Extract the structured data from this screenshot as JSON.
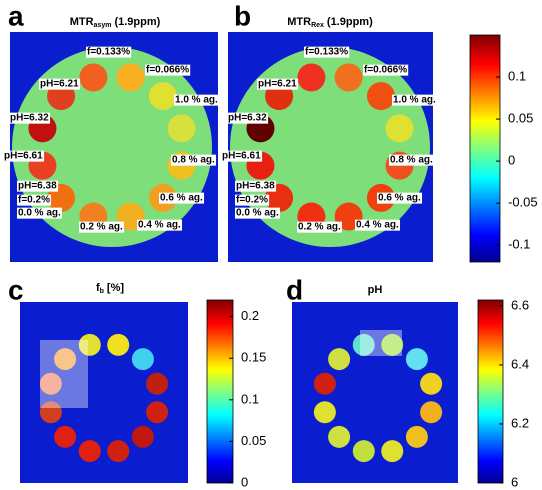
{
  "panels": [
    {
      "letter": "a",
      "title": {
        "main": "MTR",
        "sub": "asym",
        "rest": "(1.9ppm)"
      },
      "annotations": [
        "f=0.133%",
        "f=0.066%",
        "pH=6.21",
        "1.0 % ag.",
        "pH=6.32",
        "0.8 % ag.",
        "pH=6.61",
        "pH=6.38",
        "f=0.2%",
        "0.0 % ag.",
        "0.6 % ag.",
        "0.2 % ag.",
        "0.4 % ag."
      ]
    },
    {
      "letter": "b",
      "title": {
        "main": "MTR",
        "sub": "Rex",
        "rest": "(1.9ppm)"
      },
      "annotations": [
        "f=0.133%",
        "f=0.066%",
        "pH=6.21",
        "1.0 % ag.",
        "pH=6.32",
        "0.8 % ag.",
        "pH=6.61",
        "pH=6.38",
        "f=0.2%",
        "0.0 % ag.",
        "0.6 % ag.",
        "0.2 % ag.",
        "0.4 % ag."
      ]
    },
    {
      "letter": "c",
      "title": {
        "main": "f",
        "sub": "b",
        "rest": "[%]"
      }
    },
    {
      "letter": "d",
      "title": {
        "main": "pH"
      }
    }
  ],
  "colorbars": [
    {
      "lim": [
        -0.12,
        0.15
      ],
      "ticks": [
        0.1,
        0.05,
        0,
        -0.05,
        -0.1
      ]
    },
    {
      "lim": [
        0,
        0.22
      ],
      "ticks": [
        0.2,
        0.15,
        0.1,
        0.05,
        0
      ]
    },
    {
      "lim": [
        6,
        6.62
      ],
      "ticks": [
        6.6,
        6.4,
        6.2,
        6
      ]
    }
  ]
}
